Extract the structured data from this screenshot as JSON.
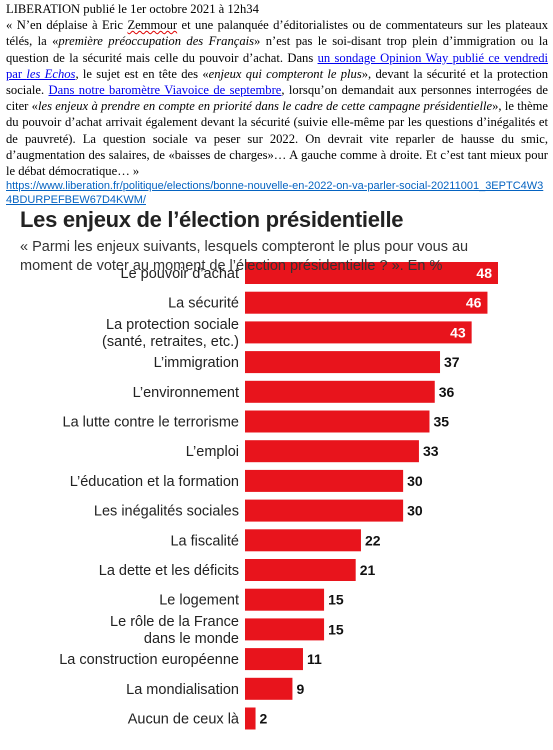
{
  "article": {
    "header": "LIBERATION publié le 1er octobre 2021 à 12h34",
    "p1": "« N’en déplaise à Eric ",
    "zemmour": "Zemmour",
    "p2": " et une palanquée d’éditorialistes ou de commentateurs sur les plateaux télés, la «",
    "p2_em": "première préoccupation des Français",
    "p3": "» n’est pas le soi-disant trop plein d’immigration ou la question de la sécurité mais celle du pouvoir d’achat. Dans ",
    "link1": "un sondage Opinion Way publié ce vendredi par ",
    "link1_em": "les Echos",
    "p4": ", le sujet est en tête des «",
    "p4_em": "enjeux qui compteront le plus",
    "p5": "», devant la sécurité et la protection sociale. ",
    "link2": "Dans notre baromètre Viavoice de septembre",
    "p6": ", lorsqu’on demandait aux personnes interrogées de citer «",
    "p6_em": "les enjeux à prendre en compte en priorité dans le cadre de cette campagne présidentielle",
    "p7": "», le thème du pouvoir d’achat arrivait également devant la sécurité (suivie elle-même par les questions d’inégalités et de pauvreté). La question sociale va peser sur 2022. On devrait vite reparler de hausse du smic, d’augmentation des salaires, de «baisses de charges»… A gauche comme à droite. Et c’est tant mieux pour le débat démocratique… »",
    "url": "https://www.liberation.fr/politique/elections/bonne-nouvelle-en-2022-on-va-parler-social-20211001_3EPTC4W34BDURPEFBEW67D4KWM/"
  },
  "chart_data": {
    "type": "bar",
    "orientation": "horizontal",
    "title": "Les enjeux de l’élection présidentielle",
    "subtitle": "« Parmi les enjeux suivants, lesquels compteront le plus pour vous au moment de voter au moment de l’élection présidentielle ? ». En %",
    "categories": [
      [
        "Le pouvoir d’achat"
      ],
      [
        "La sécurité"
      ],
      [
        "La protection sociale",
        "(santé, retraites, etc.)"
      ],
      [
        "L’immigration"
      ],
      [
        "L’environnement"
      ],
      [
        "La lutte contre le terrorisme"
      ],
      [
        "L’emploi"
      ],
      [
        "L’éducation et la formation"
      ],
      [
        "Les inégalités sociales"
      ],
      [
        "La fiscalité"
      ],
      [
        "La dette et les déficits"
      ],
      [
        "Le logement"
      ],
      [
        "Le rôle de la France",
        "dans le monde"
      ],
      [
        "La construction européenne"
      ],
      [
        "La mondialisation"
      ],
      [
        "Aucun de ceux là"
      ]
    ],
    "values": [
      48,
      46,
      43,
      37,
      36,
      35,
      33,
      30,
      30,
      22,
      21,
      15,
      15,
      11,
      9,
      2
    ],
    "xlim": [
      0,
      48
    ],
    "grid": false,
    "bar_color": "#e8141c",
    "value_color_inside": "#ffffff",
    "value_color_outside": "#111111"
  }
}
